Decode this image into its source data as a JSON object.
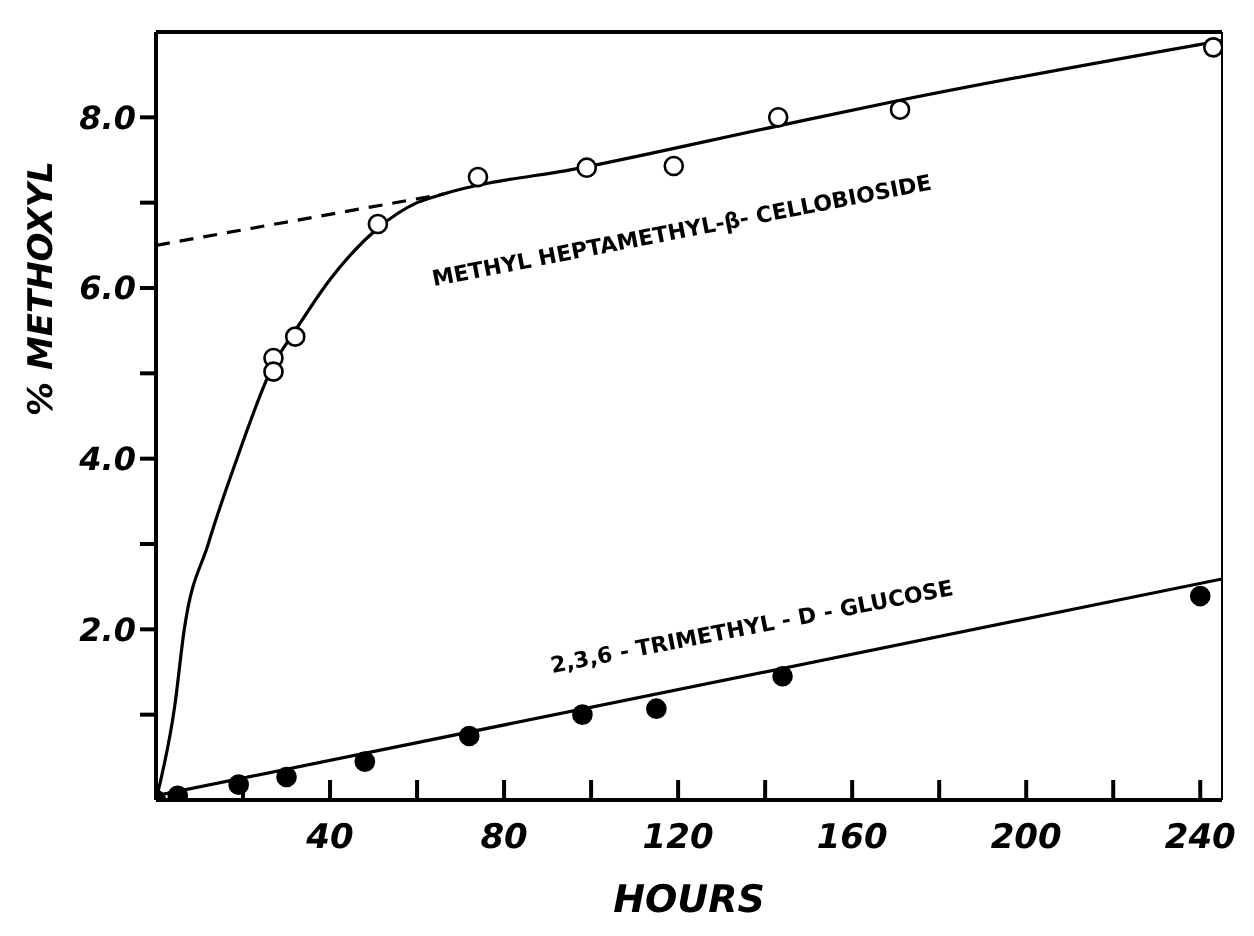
{
  "chart_data": {
    "type": "scatter",
    "xlabel": "HOURS",
    "ylabel": "% METHOXYL",
    "xlim": [
      0,
      245
    ],
    "ylim": [
      0,
      9
    ],
    "xticks": [
      {
        "value": 20,
        "label": null
      },
      40,
      {
        "value": 60,
        "label": null
      },
      80,
      {
        "value": 100,
        "label": null
      },
      120,
      {
        "value": 140,
        "label": null
      },
      160,
      {
        "value": 180,
        "label": null
      },
      200,
      {
        "value": 220,
        "label": null
      },
      240
    ],
    "yticks": [
      {
        "value": 1,
        "label": null
      },
      {
        "value": 2,
        "label": "2.0"
      },
      {
        "value": 3,
        "label": null
      },
      {
        "value": 4,
        "label": "4.0"
      },
      {
        "value": 5,
        "label": null
      },
      {
        "value": 6,
        "label": "6.0"
      },
      {
        "value": 7,
        "label": null
      },
      {
        "value": 8,
        "label": "8.0"
      }
    ],
    "tick_labels": [
      "x",
      "y"
    ],
    "series": [
      {
        "marker": "circle",
        "color": "#ffffff",
        "x": [
          27,
          27,
          32,
          51,
          74,
          99,
          119,
          143,
          171,
          243
        ],
        "values": [
          5.18,
          5.02,
          5.43,
          6.75,
          7.3,
          7.41,
          7.43,
          8.0,
          8.09,
          8.82
        ]
      },
      {
        "marker": "circle",
        "color": "#000000",
        "x": [
          0,
          5,
          19,
          30,
          48,
          72,
          98,
          115,
          144,
          240
        ],
        "values": [
          0,
          0.05,
          0.18,
          0.27,
          0.45,
          0.75,
          1.0,
          1.07,
          1.45,
          2.39
        ]
      },
      {
        "type": "line",
        "color": "#000000",
        "line_style": "solid",
        "x": [
          0,
          4.3,
          6.5,
          12,
          18.6,
          27,
          32,
          40,
          51,
          60,
          66,
          99,
          143,
          171,
          245
        ],
        "values": [
          0,
          1.1,
          2.0,
          3.0,
          4.0,
          5.1,
          5.5,
          6.1,
          6.7,
          7.0,
          7.1,
          7.42,
          7.9,
          8.2,
          8.9
        ]
      },
      {
        "type": "line",
        "color": "#000000",
        "line_style": "dashed",
        "x": [
          0,
          66
        ],
        "values": [
          6.5,
          7.1
        ]
      },
      {
        "type": "line",
        "color": "#000000",
        "line_style": "solid",
        "x": [
          0,
          245
        ],
        "values": [
          0.05,
          2.59
        ]
      }
    ],
    "annotations": [
      "METHYL HEPTAMETHYL-β- CELLOBIOSIDE",
      "2,3,6 - TRIMETHYL - D - GLUCOSE"
    ]
  }
}
